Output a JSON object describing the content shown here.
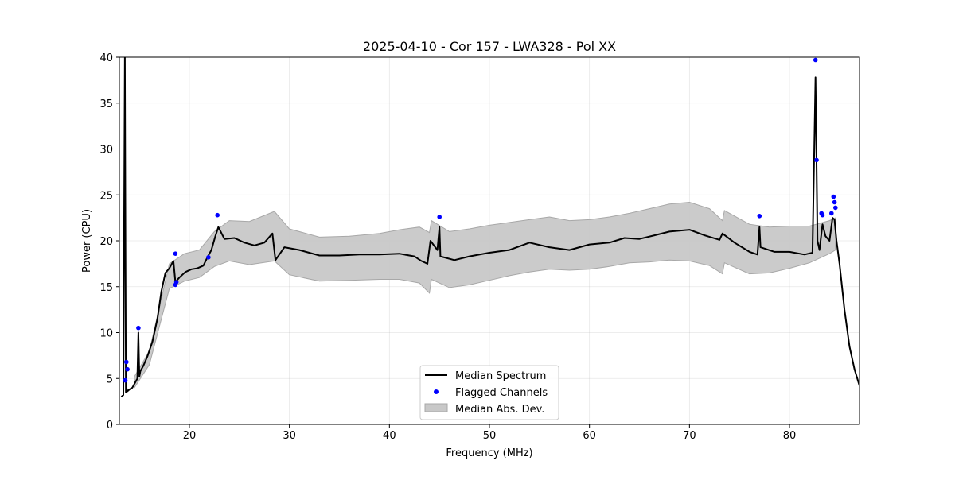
{
  "chart_data": {
    "type": "line",
    "title": "2025-04-10 - Cor 157 - LWA328 - Pol XX",
    "xlabel": "Frequency (MHz)",
    "ylabel": "Power (CPU)",
    "xlim": [
      13.0,
      87.0
    ],
    "ylim": [
      0,
      40
    ],
    "xticks": [
      20,
      30,
      40,
      50,
      60,
      70,
      80
    ],
    "yticks": [
      0,
      5,
      10,
      15,
      20,
      25,
      30,
      35,
      40
    ],
    "xtick_labels": [
      "20",
      "30",
      "40",
      "50",
      "60",
      "70",
      "80"
    ],
    "ytick_labels": [
      "0",
      "5",
      "10",
      "15",
      "20",
      "25",
      "30",
      "35",
      "40"
    ],
    "grid": true,
    "legend": {
      "position": "lower-center",
      "entries": [
        "Median Spectrum",
        "Flagged Channels",
        "Median Abs. Dev."
      ]
    },
    "colors": {
      "median": "#000000",
      "flagged": "#0000ff",
      "mad_fill": "#c8c8c8",
      "mad_edge": "#a8a8a8"
    },
    "series": [
      {
        "name": "Median Spectrum",
        "x": [
          13.2,
          13.4,
          13.55,
          13.65,
          13.7,
          13.8,
          14.0,
          14.3,
          14.6,
          14.8,
          14.9,
          15.0,
          15.1,
          15.4,
          15.8,
          16.3,
          16.8,
          17.2,
          17.6,
          18.0,
          18.4,
          18.6,
          19.0,
          19.6,
          20.2,
          20.8,
          21.4,
          21.8,
          22.2,
          22.6,
          22.9,
          23.5,
          24.5,
          25.5,
          26.5,
          27.5,
          28.3,
          28.6,
          29.5,
          31.0,
          33.0,
          35.0,
          37.0,
          39.0,
          41.0,
          42.5,
          43.2,
          43.8,
          44.1,
          44.8,
          45.0,
          45.1,
          46.5,
          48.0,
          50.0,
          52.0,
          54.0,
          56.0,
          58.0,
          60.0,
          62.0,
          63.5,
          65.0,
          66.5,
          68.0,
          70.0,
          71.5,
          73.0,
          73.3,
          74.5,
          76.0,
          76.8,
          77.0,
          77.1,
          78.5,
          80.0,
          81.5,
          82.3,
          82.6,
          82.8,
          83.0,
          83.3,
          83.6,
          84.0,
          84.3,
          84.5,
          84.7,
          85.0,
          85.5,
          86.0,
          86.5,
          87.0
        ],
        "y": [
          3.0,
          3.2,
          40.0,
          3.5,
          4.0,
          3.6,
          3.8,
          4.0,
          4.6,
          5.0,
          10.0,
          5.2,
          5.8,
          6.4,
          7.4,
          9.0,
          11.5,
          14.5,
          16.5,
          17.0,
          17.8,
          15.5,
          16.0,
          16.6,
          16.9,
          17.0,
          17.3,
          18.2,
          19.0,
          20.5,
          21.5,
          20.2,
          20.3,
          19.8,
          19.5,
          19.8,
          20.8,
          17.9,
          19.3,
          19.0,
          18.4,
          18.4,
          18.5,
          18.5,
          18.6,
          18.3,
          17.8,
          17.5,
          20.0,
          19.0,
          21.5,
          18.3,
          17.9,
          18.3,
          18.7,
          19.0,
          19.8,
          19.3,
          19.0,
          19.6,
          19.8,
          20.3,
          20.2,
          20.6,
          21.0,
          21.2,
          20.6,
          20.1,
          20.8,
          19.8,
          18.8,
          18.5,
          21.5,
          19.3,
          18.8,
          18.8,
          18.5,
          18.7,
          37.8,
          20.0,
          19.0,
          21.8,
          20.5,
          20.0,
          22.5,
          22.3,
          20.0,
          17.5,
          12.5,
          8.5,
          6.0,
          4.2
        ]
      },
      {
        "name": "Median Abs. Dev.",
        "x": [
          14.5,
          16.0,
          18.0,
          19.5,
          21.0,
          22.5,
          24.0,
          26.0,
          28.5,
          30.0,
          33.0,
          36.0,
          39.0,
          41.0,
          43.0,
          44.0,
          44.2,
          46.0,
          48.0,
          50.0,
          52.0,
          54.0,
          56.0,
          58.0,
          60.0,
          62.0,
          64.0,
          66.0,
          68.0,
          70.0,
          72.0,
          73.3,
          73.5,
          76.0,
          78.0,
          80.0,
          82.0,
          84.0,
          84.6
        ],
        "upper": [
          5.2,
          8.0,
          17.5,
          18.6,
          19.0,
          21.0,
          22.2,
          22.1,
          23.2,
          21.3,
          20.4,
          20.5,
          20.8,
          21.2,
          21.5,
          20.9,
          22.2,
          21.0,
          21.3,
          21.7,
          22.0,
          22.3,
          22.6,
          22.2,
          22.3,
          22.6,
          23.0,
          23.5,
          24.0,
          24.2,
          23.5,
          22.2,
          23.3,
          21.8,
          21.5,
          21.6,
          21.6,
          22.2,
          22.5
        ],
        "lower": [
          4.0,
          6.5,
          14.8,
          15.6,
          16.0,
          17.2,
          17.8,
          17.4,
          17.8,
          16.3,
          15.6,
          15.7,
          15.8,
          15.8,
          15.4,
          14.3,
          15.8,
          14.9,
          15.2,
          15.7,
          16.2,
          16.6,
          16.9,
          16.8,
          16.9,
          17.2,
          17.6,
          17.7,
          17.9,
          17.8,
          17.3,
          16.4,
          17.6,
          16.4,
          16.5,
          17.0,
          17.6,
          18.6,
          19.0
        ]
      },
      {
        "name": "Flagged Channels",
        "x": [
          13.6,
          13.7,
          13.8,
          14.9,
          18.6,
          18.6,
          18.7,
          21.9,
          22.8,
          45.0,
          77.0,
          82.6,
          82.7,
          83.2,
          83.3,
          84.2,
          84.4,
          84.5,
          84.6
        ],
        "y": [
          4.8,
          6.8,
          6.0,
          10.5,
          18.6,
          15.2,
          15.5,
          18.2,
          22.8,
          22.6,
          22.7,
          39.7,
          28.8,
          23.0,
          22.8,
          23.0,
          24.8,
          24.2,
          23.6
        ]
      }
    ]
  }
}
